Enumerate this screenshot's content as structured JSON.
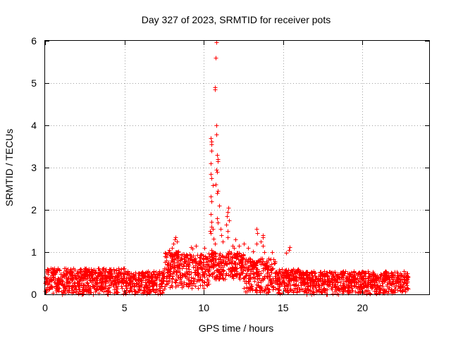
{
  "chart_data": {
    "type": "scatter",
    "title": "Day 327 of 2023, SRMTID for receiver pots",
    "xlabel": "GPS time / hours",
    "ylabel": "SRMTID / TECUs",
    "xlim": [
      0,
      24.2
    ],
    "ylim": [
      0,
      6
    ],
    "xticks": [
      0,
      5,
      10,
      15,
      20
    ],
    "yticks": [
      0,
      1,
      2,
      3,
      4,
      5,
      6
    ],
    "grid": true,
    "marker": "+",
    "series": [
      {
        "name": "SRMTID",
        "color": "#ff0000",
        "points": [
          [
            10.8,
            5.97
          ],
          [
            10.75,
            5.6
          ],
          [
            10.7,
            4.9
          ],
          [
            10.72,
            4.85
          ],
          [
            10.78,
            4.0
          ],
          [
            10.77,
            3.78
          ],
          [
            10.45,
            3.7
          ],
          [
            10.5,
            3.62
          ],
          [
            10.48,
            3.55
          ],
          [
            10.5,
            3.4
          ],
          [
            10.85,
            3.3
          ],
          [
            10.9,
            3.2
          ],
          [
            10.88,
            3.15
          ],
          [
            10.42,
            3.1
          ],
          [
            10.8,
            2.95
          ],
          [
            10.85,
            2.9
          ],
          [
            10.45,
            2.85
          ],
          [
            10.5,
            2.75
          ],
          [
            10.75,
            2.6
          ],
          [
            10.55,
            2.58
          ],
          [
            10.9,
            2.45
          ],
          [
            10.85,
            2.4
          ],
          [
            10.45,
            2.32
          ],
          [
            10.5,
            2.2
          ],
          [
            10.95,
            2.1
          ],
          [
            11.55,
            2.05
          ],
          [
            11.5,
            1.95
          ],
          [
            10.45,
            1.9
          ],
          [
            11.45,
            1.85
          ],
          [
            10.85,
            1.8
          ],
          [
            11.6,
            1.75
          ],
          [
            10.48,
            1.72
          ],
          [
            10.9,
            1.7
          ],
          [
            11.4,
            1.65
          ],
          [
            10.5,
            1.6
          ],
          [
            10.55,
            1.55
          ],
          [
            11.05,
            1.55
          ],
          [
            13.3,
            1.55
          ],
          [
            10.4,
            1.5
          ],
          [
            11.5,
            1.5
          ],
          [
            10.42,
            1.45
          ],
          [
            13.35,
            1.45
          ],
          [
            11.1,
            1.4
          ],
          [
            13.7,
            1.4
          ],
          [
            11.5,
            1.35
          ],
          [
            8.2,
            1.35
          ],
          [
            13.7,
            1.35
          ],
          [
            10.6,
            1.32
          ],
          [
            12.0,
            1.3
          ],
          [
            8.15,
            1.3
          ],
          [
            8.3,
            1.25
          ],
          [
            11.2,
            1.25
          ],
          [
            13.6,
            1.25
          ],
          [
            8.1,
            1.2
          ],
          [
            12.5,
            1.2
          ],
          [
            13.3,
            1.2
          ],
          [
            10.7,
            1.2
          ],
          [
            9.5,
            1.15
          ],
          [
            11.8,
            1.15
          ],
          [
            12.2,
            1.15
          ],
          [
            13.7,
            1.15
          ],
          [
            9.2,
            1.12
          ],
          [
            15.4,
            1.12
          ],
          [
            8.0,
            1.1
          ],
          [
            10.05,
            1.1
          ],
          [
            11.9,
            1.1
          ],
          [
            12.8,
            1.1
          ],
          [
            9.3,
            1.08
          ],
          [
            15.35,
            1.05
          ],
          [
            7.8,
            1.05
          ],
          [
            10.5,
            1.05
          ],
          [
            8.4,
            1.02
          ],
          [
            11.6,
            1.02
          ],
          [
            13.1,
            1.02
          ],
          [
            13.8,
            1.0
          ],
          [
            14.3,
            1.0
          ],
          [
            15.2,
            0.98
          ]
        ]
      }
    ]
  }
}
